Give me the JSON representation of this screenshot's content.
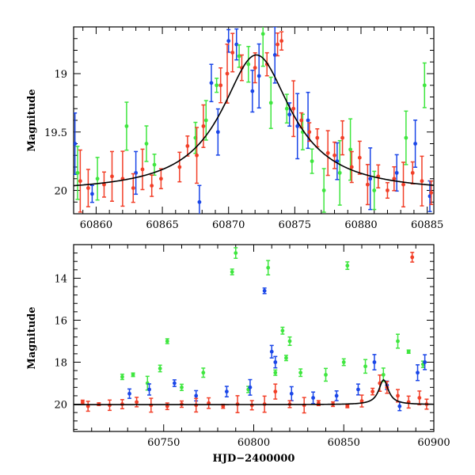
{
  "chart_data": [
    {
      "type": "scatter",
      "title": "",
      "xlabel": "",
      "ylabel": "Magnitude",
      "xlim": [
        60858.3,
        60885.5
      ],
      "ylim": [
        20.2,
        18.6
      ],
      "y_inverted": true,
      "x_ticks": [
        60860,
        60865,
        60870,
        60875,
        60880,
        60885
      ],
      "y_ticks": [
        19,
        19.5,
        20
      ],
      "colors": {
        "blue": "#1a46e8",
        "green": "#3fe63f",
        "red": "#f23f28",
        "model": "#000000"
      },
      "model_curve": {
        "type": "microlensing",
        "peak_x": 60872.1,
        "peak_mag": 18.84,
        "baseline_mag": 20.02
      },
      "series": [
        {
          "color": "blue",
          "x": [
            60858.4,
            60859.7,
            60863.0,
            60867.8,
            60868.7,
            60869.2,
            60870.0,
            60870.6,
            60871.8,
            60872.3,
            60873.5,
            60874.6,
            60875.2,
            60876.0,
            60878.2,
            60880.7,
            60882.7,
            60884.1,
            60885.2
          ],
          "y": [
            19.6,
            20.03,
            19.85,
            20.1,
            19.08,
            19.5,
            18.72,
            18.75,
            19.15,
            19.02,
            18.84,
            19.35,
            19.45,
            19.4,
            19.75,
            19.9,
            19.85,
            19.6,
            20.05
          ]
        },
        {
          "color": "green",
          "x": [
            60858.6,
            60860.1,
            60862.3,
            60863.8,
            60864.4,
            60867.5,
            60868.3,
            60869.1,
            60870.8,
            60871.5,
            60872.6,
            60873.2,
            60874.4,
            60875.6,
            60876.3,
            60877.2,
            60878.4,
            60879.2,
            60881.0,
            60883.4,
            60884.8
          ],
          "y": [
            19.85,
            19.9,
            19.45,
            19.6,
            19.78,
            19.55,
            19.4,
            19.1,
            18.85,
            18.92,
            18.66,
            19.25,
            19.3,
            19.5,
            19.75,
            20.0,
            19.85,
            19.65,
            20.0,
            19.55,
            19.1
          ]
        },
        {
          "color": "red",
          "x": [
            60858.8,
            60859.4,
            60860.6,
            60861.2,
            60862.0,
            60862.8,
            60863.5,
            60864.2,
            60864.9,
            60866.3,
            60866.9,
            60867.6,
            60868.1,
            60869.4,
            60869.9,
            60870.3,
            60871.0,
            60872.0,
            60872.9,
            60873.7,
            60874.0,
            60874.9,
            60875.5,
            60876.1,
            60876.7,
            60877.5,
            60878.0,
            60878.6,
            60879.3,
            60879.9,
            60880.5,
            60881.3,
            60882.0,
            60882.5,
            60883.2,
            60883.9,
            60884.6,
            60885.3
          ],
          "y": [
            19.92,
            19.98,
            19.95,
            19.88,
            19.9,
            19.98,
            19.82,
            19.96,
            19.9,
            19.8,
            19.62,
            19.7,
            19.45,
            19.1,
            19.0,
            18.82,
            18.95,
            18.95,
            18.92,
            18.75,
            18.72,
            19.3,
            19.4,
            19.5,
            19.55,
            19.68,
            19.7,
            19.55,
            19.8,
            19.72,
            19.95,
            19.88,
            20.0,
            19.9,
            19.95,
            19.85,
            19.92,
            20.02
          ]
        }
      ]
    },
    {
      "type": "scatter",
      "title": "",
      "xlabel": "HJD−2400000",
      "ylabel": "Magnitude",
      "xlim": [
        60700,
        60900
      ],
      "ylim": [
        21.3,
        12.4
      ],
      "y_inverted": true,
      "x_ticks": [
        60750,
        60800,
        60850,
        60900
      ],
      "y_ticks": [
        14,
        16,
        18,
        20
      ],
      "colors": {
        "blue": "#1a46e8",
        "green": "#3fe63f",
        "red": "#f23f28",
        "model": "#000000"
      },
      "model_curve": {
        "type": "microlensing",
        "peak_x": 60872.1,
        "peak_mag": 18.84,
        "baseline_mag": 20.02
      },
      "series": [
        {
          "color": "green",
          "x": [
            60727,
            60733,
            60741,
            60748,
            60752,
            60760,
            60772,
            60788,
            60790,
            60797,
            60808,
            60812,
            60816,
            60818,
            60820,
            60826,
            60840,
            60850,
            60852,
            60862,
            60872,
            60880,
            60886,
            60894
          ],
          "y": [
            18.7,
            18.6,
            19.0,
            18.3,
            17.0,
            19.2,
            18.5,
            13.7,
            12.8,
            19.3,
            13.5,
            18.5,
            16.5,
            17.8,
            17.0,
            18.5,
            18.6,
            18.0,
            13.4,
            18.2,
            18.6,
            17.0,
            17.5,
            18.1
          ]
        },
        {
          "color": "blue",
          "x": [
            60731,
            60742,
            60756,
            60768,
            60785,
            60798,
            60806,
            60810,
            60812,
            60821,
            60833,
            60846,
            60858,
            60867,
            60874,
            60881,
            60891,
            60895
          ],
          "y": [
            19.5,
            19.3,
            19.0,
            19.6,
            19.4,
            19.2,
            14.6,
            17.5,
            18.0,
            19.5,
            19.7,
            19.6,
            19.3,
            18.0,
            19.1,
            20.1,
            18.5,
            18.0
          ]
        },
        {
          "color": "red",
          "x": [
            60705,
            60708,
            60714,
            60720,
            60727,
            60735,
            60743,
            60752,
            60760,
            60768,
            60775,
            60783,
            60791,
            60799,
            60806,
            60812,
            60820,
            60828,
            60836,
            60844,
            60852,
            60860,
            60866,
            60870,
            60874,
            60880,
            60886,
            60888,
            60892,
            60896
          ],
          "y": [
            19.9,
            20.1,
            20.0,
            20.05,
            20.0,
            19.9,
            20.05,
            20.1,
            20.0,
            20.05,
            19.95,
            20.1,
            20.0,
            20.05,
            20.0,
            19.4,
            20.0,
            20.05,
            19.95,
            20.0,
            20.1,
            19.85,
            19.4,
            19.0,
            19.2,
            19.6,
            19.9,
            13.0,
            19.7,
            20.0
          ]
        }
      ]
    }
  ]
}
